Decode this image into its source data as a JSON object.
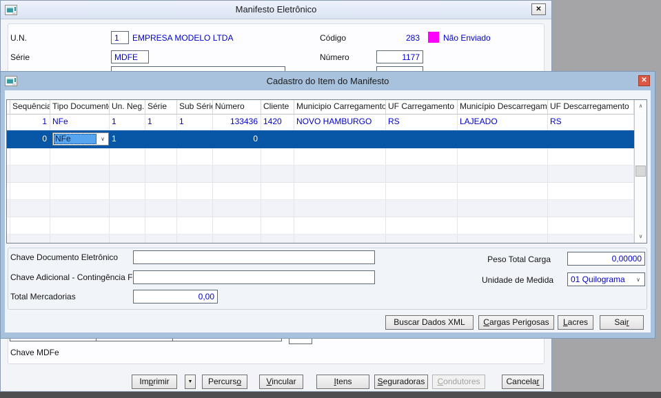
{
  "colors": {
    "selection": "#0857a6",
    "data-text": "#0000cc",
    "dialog-chrome": "#a8c2dd"
  },
  "glyphs": {
    "close": "✕",
    "dropdown_small": "▼",
    "chevron_down": "∨",
    "scroll_up": "∧",
    "scroll_down": "∨"
  },
  "main_window": {
    "title": "Manifesto Eletrônico",
    "un_label": "U.N.",
    "un_value": "1",
    "company_name": "EMPRESA MODELO LTDA",
    "codigo_label": "Código",
    "codigo_value": "283",
    "status_text": "Não Enviado",
    "status_color": "#ff00ff",
    "serie_label": "Série",
    "serie_value": "MDFE",
    "numero_label": "Número",
    "numero_value": "1177",
    "chave_mdfe_label": "Chave MDFe",
    "buttons": {
      "imprimir": "Im&primir",
      "percurso": "Percurs&o",
      "vincular": "&Vincular",
      "itens": "&Itens",
      "seguradoras": "&Seguradoras",
      "condutores": "&Condutores",
      "cancelar": "Cancela&r"
    }
  },
  "dialog": {
    "title": "Cadastro do Item do Manifesto",
    "grid": {
      "columns": [
        "Sequência",
        "Tipo Documento",
        "Un. Neg.",
        "Série",
        "Sub Série",
        "Número",
        "Cliente",
        "Municipio Carregamento",
        "UF Carregamento",
        "Município Descarregamento",
        "UF Descarregamento"
      ],
      "rows": [
        {
          "cells": [
            "1",
            "NFe",
            "1",
            "1",
            "1",
            "133436",
            "1420",
            "NOVO HAMBURGO",
            "RS",
            "LAJEADO",
            "RS"
          ],
          "selected": false
        },
        {
          "cells": [
            "0",
            "NFe",
            "1",
            "",
            "",
            "0",
            "",
            "",
            "",
            "",
            ""
          ],
          "selected": true,
          "combo_cell": 1
        }
      ]
    },
    "form": {
      "chave_doc_label": "Chave Documento Eletrônico",
      "chave_doc_value": "",
      "chave_adicional_label": "Chave Adicional - Contingência FS",
      "chave_adicional_value": "",
      "total_mercadorias_label": "Total Mercadorias",
      "total_mercadorias_value": "0,00",
      "peso_label": "Peso Total Carga",
      "peso_value": "0,00000",
      "unidade_label": "Unidade de Medida",
      "unidade_value": "01 Quilograma"
    },
    "buttons": {
      "buscar_xml": "Buscar Dados XML",
      "cargas": "&Cargas Perigosas",
      "lacres": "&Lacres",
      "sair": "Sai&r"
    }
  }
}
